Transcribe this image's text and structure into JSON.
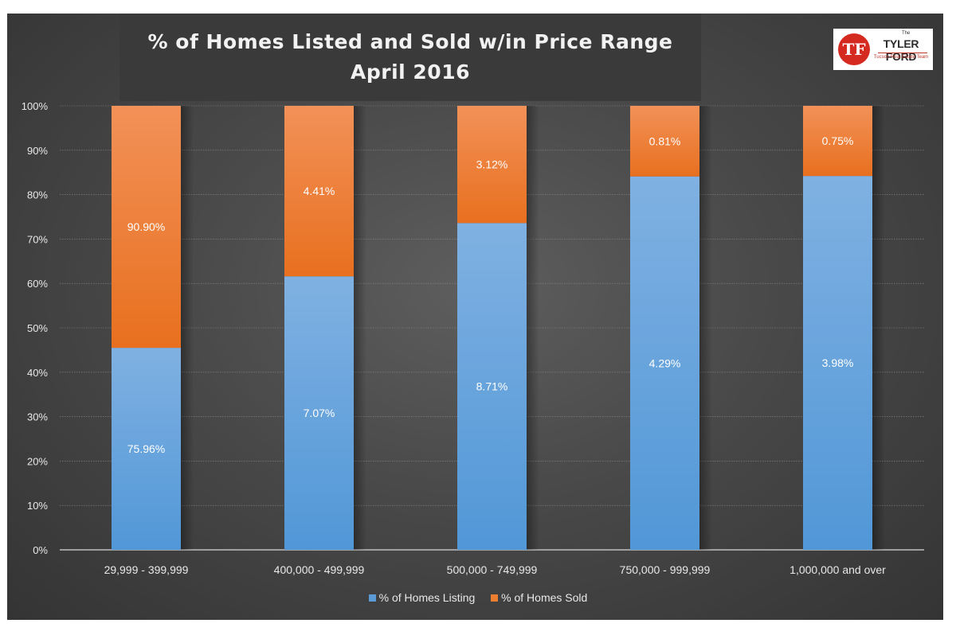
{
  "chart_data": {
    "type": "bar",
    "stacked": true,
    "title": "% of Homes Listed and Sold w/in Price Range",
    "subtitle": "April 2016",
    "categories": [
      "29,999 - 399,999",
      "400,000 - 499,999",
      "500,000 - 749,999",
      "750,000 - 999,999",
      "1,000,000 and over"
    ],
    "series": [
      {
        "name": "% of Homes Listing",
        "color": "#5b9bd5",
        "values": [
          45.5,
          61.6,
          73.6,
          84.1,
          84.2
        ],
        "labels": [
          "75.96%",
          "7.07%",
          "8.71%",
          "4.29%",
          "3.98%"
        ]
      },
      {
        "name": "% of Homes Sold",
        "color": "#ed7d31",
        "values": [
          54.5,
          38.4,
          26.4,
          15.9,
          15.8
        ],
        "labels": [
          "90.90%",
          "4.41%",
          "3.12%",
          "0.81%",
          "0.75%"
        ]
      }
    ],
    "yticks": [
      "0%",
      "10%",
      "20%",
      "30%",
      "40%",
      "50%",
      "60%",
      "70%",
      "80%",
      "90%",
      "100%"
    ],
    "ylim": [
      0,
      100
    ],
    "grid": true,
    "legend": "bottom"
  },
  "logo": {
    "small_top": "The",
    "name": "TYLER FORD",
    "tagline": "Tucson Real Estate Team",
    "mark": "TF"
  }
}
